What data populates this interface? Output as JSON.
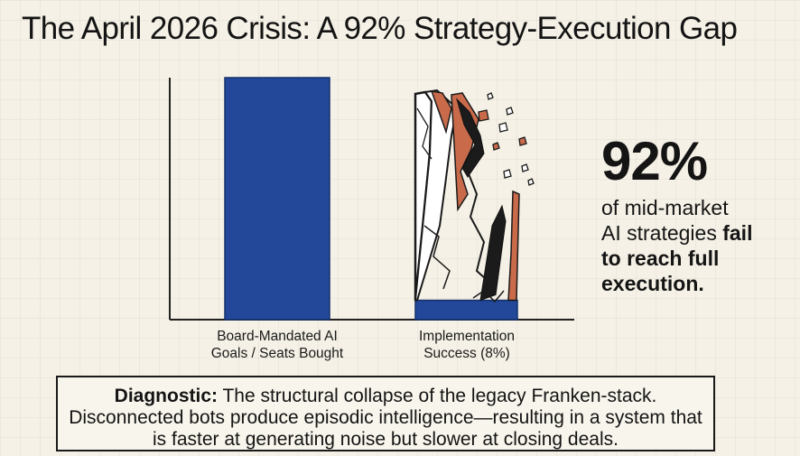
{
  "title": "The April 2026 Crisis: A 92% Strategy-Execution Gap",
  "chart_data": {
    "type": "bar",
    "title": "The April 2026 Crisis: A 92% Strategy-Execution Gap",
    "categories": [
      "Board-Mandated AI Goals / Seats Bought",
      "Implementation Success (8%)"
    ],
    "category_lines": [
      [
        "Board-Mandated AI",
        "Goals / Seats Bought"
      ],
      [
        "Implementation",
        "Success (8%)"
      ]
    ],
    "values": [
      100,
      8
    ],
    "units": "%",
    "ylim": [
      0,
      100
    ],
    "xlabel": "",
    "ylabel": "",
    "grid": false,
    "annotations": [
      "Second bar drawn as a cracked, collapsed outline of the full-height bar"
    ]
  },
  "colors": {
    "bar": "#23489a",
    "bar_edge": "#15306a",
    "crack": "#1b1b1b",
    "rust": "#c96b4b",
    "axis": "#222222"
  },
  "callout": {
    "big": "92%",
    "line1": "of mid-market",
    "line2a": "AI strategies ",
    "line2b": "fail",
    "line3": "to reach full",
    "line4": "execution."
  },
  "diagnostic": {
    "label": "Diagnostic:",
    "text": " The structural collapse of the legacy Franken-stack. Disconnected bots produce episodic intelligence—resulting in a system that is faster at generating noise but slower at closing deals."
  }
}
